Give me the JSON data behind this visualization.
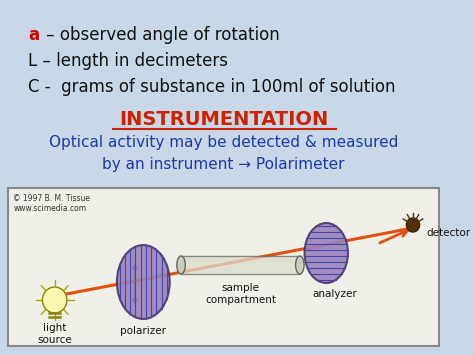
{
  "bg_color": "#c8d8e8",
  "line1_red": "a",
  "line1_black": " – observed angle of rotation",
  "line2": "L – length in decimeters",
  "line3": "C -  grams of substance in 100ml of solution",
  "heading": "INSTRUMENTATION",
  "subtext1": "Optical activity may be detected & measured",
  "subtext2": "by an instrument → Polarimeter",
  "copyright": "© 1997 B. M. Tissue\nwww.scimedia.com",
  "label_light": "light\nsource",
  "label_polarizer": "polarizer",
  "label_sample": "sample\ncompartment",
  "label_analyzer": "analyzer",
  "label_detector": "detector",
  "heading_color": "#cc2200",
  "subtext_color": "#1a3aaa",
  "text_color": "#111111",
  "box_bg": "#f0f0e8",
  "box_border": "#888888",
  "disk_color": "#9980bb",
  "beam_color": "#e05010",
  "underline_color": "#cc2200"
}
